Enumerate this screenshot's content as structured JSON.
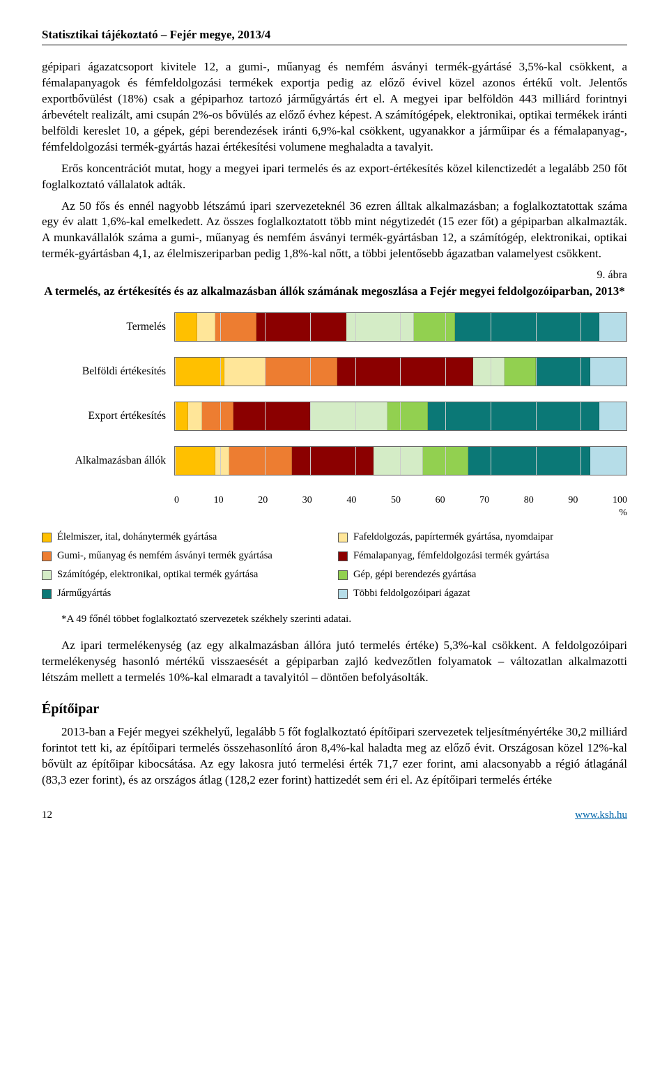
{
  "header": "Statisztikai tájékoztató – Fejér megye, 2013/4",
  "para1": "gépipari ágazatcsoport kivitele 12, a gumi-, műanyag és nemfém ásványi termék-gyártásé 3,5%-kal csökkent, a fémalapanyagok és fémfeldolgozási termékek exportja pedig az előző évivel közel azonos értékű volt. Jelentős exportbővülést (18%) csak a gépiparhoz tartozó járműgyártás ért el. A megyei ipar belföldön 443 milliárd forintnyi árbevételt realizált, ami csupán 2%-os bővülés az előző évhez képest. A számítógépek, elektronikai, optikai termékek iránti belföldi kereslet 10, a gépek, gépi berendezések iránti 6,9%-kal csökkent, ugyanakkor a járműipar és a fémalapanyag-, fémfeldolgozási termék-gyártás hazai értékesítési volumene meghaladta a tavalyit.",
  "para2": "Erős koncentrációt mutat, hogy a megyei ipari termelés és az export-értékesítés közel kilenctizedét a legalább 250 főt foglalkoztató vállalatok adták.",
  "para3": "Az 50 fős és ennél nagyobb létszámú ipari szervezeteknél 36 ezren álltak alkalmazásban; a foglalkoztatottak száma egy év alatt 1,6%-kal emelkedett. Az összes foglalkoztatott több mint négytizedét (15 ezer főt) a gépiparban alkalmazták. A munkavállalók száma a gumi-, műanyag és nemfém ásványi termék-gyártásban 12, a számítógép, elektronikai, optikai termék-gyártásban 4,1, az élelmiszeriparban pedig 1,8%-kal nőtt, a többi jelentősebb ágazatban valamelyest csökkent.",
  "figureLabel": "9. ábra",
  "chartTitle": "A termelés, az értékesítés és az alkalmazásban állók számának megoszlása a Fejér megyei feldolgozóiparban, 2013*",
  "chart": {
    "type": "stacked-bar-horizontal",
    "xlim": [
      0,
      100
    ],
    "xtick_step": 10,
    "xticks": [
      "0",
      "10",
      "20",
      "30",
      "40",
      "50",
      "60",
      "70",
      "80",
      "90",
      "100"
    ],
    "xunit": "%",
    "background": "#ffffff",
    "grid_color": "#cccccc",
    "categories": [
      "Termelés",
      "Belföldi értékesítés",
      "Export értékesítés",
      "Alkalmazásban állók"
    ],
    "series": [
      {
        "name": "Élelmiszer, ital, dohánytermék gyártása",
        "color": "#ffc000"
      },
      {
        "name": "Fafeldolgozás, papírtermék gyártása, nyomdaipar",
        "color": "#ffe699"
      },
      {
        "name": "Gumi-, műanyag és nemfém ásványi termék gyártása",
        "color": "#ed7d31"
      },
      {
        "name": "Fémalapanyag, fémfeldolgozási termék gyártása",
        "color": "#8b0000"
      },
      {
        "name": "Számítógép, elektronikai, optikai termék gyártása",
        "color": "#d4ecc6"
      },
      {
        "name": "Gép, gépi berendezés gyártása",
        "color": "#92d050"
      },
      {
        "name": "Járműgyártás",
        "color": "#0b7876"
      },
      {
        "name": "Többi feldolgozóipari ágazat",
        "color": "#b6dde8"
      }
    ],
    "rows": [
      {
        "label": "Termelés",
        "values": [
          5,
          4,
          9,
          20,
          15,
          9,
          32,
          6
        ]
      },
      {
        "label": "Belföldi értékesítés",
        "values": [
          11,
          9,
          16,
          30,
          7,
          7,
          12,
          8
        ]
      },
      {
        "label": "Export értékesítés",
        "values": [
          3,
          3,
          7,
          17,
          17,
          9,
          38,
          6
        ]
      },
      {
        "label": "Alkalmazásban állók",
        "values": [
          9,
          3,
          14,
          18,
          11,
          10,
          27,
          8
        ]
      }
    ]
  },
  "note": "*A 49 főnél többet foglalkoztató szervezetek székhely szerinti adatai.",
  "para4": "Az ipari termelékenység (az egy alkalmazásban állóra jutó termelés értéke) 5,3%-kal csökkent. A feldolgozóipari termelékenység hasonló mértékű visszaesését a gépiparban zajló kedvezőtlen folyamatok – változatlan alkalmazotti létszám mellett a termelés 10%-kal elmaradt a tavalyitól – döntően befolyásolták.",
  "heading": "Építőipar",
  "para5": "2013-ban a Fejér megyei székhelyű, legalább 5 főt foglalkoztató építőipari szervezetek teljesítményértéke 30,2 milliárd forintot tett ki, az építőipari termelés összehasonlító áron 8,4%-kal haladta meg az előző évit. Országosan közel 12%-kal bővült az építőipar kibocsátása. Az egy lakosra jutó termelési érték 71,7 ezer forint, ami alacsonyabb a régió átlagánál (83,3 ezer forint), és az országos átlag (128,2 ezer forint) hattizedét sem éri el. Az építőipari termelés értéke",
  "footer": {
    "page": "12",
    "url": "www.ksh.hu"
  }
}
